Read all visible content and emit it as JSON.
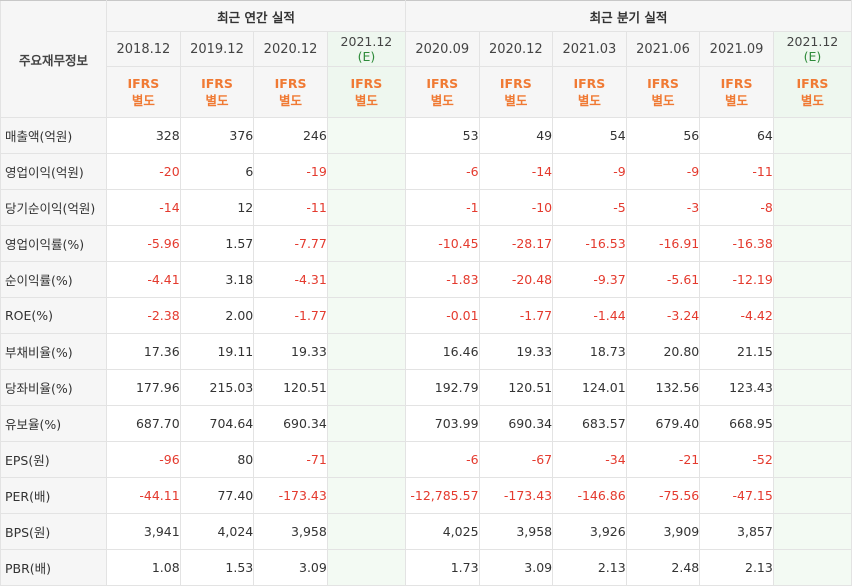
{
  "header": {
    "label": "주요재무정보",
    "annual_group": "최근 연간 실적",
    "quarter_group": "최근 분기 실적",
    "periods": [
      {
        "date": "2018.12",
        "est": "",
        "ifrs_top": "IFRS",
        "ifrs_bottom": "별도"
      },
      {
        "date": "2019.12",
        "est": "",
        "ifrs_top": "IFRS",
        "ifrs_bottom": "별도"
      },
      {
        "date": "2020.12",
        "est": "",
        "ifrs_top": "IFRS",
        "ifrs_bottom": "별도"
      },
      {
        "date": "2021.12",
        "est": "(E)",
        "ifrs_top": "IFRS",
        "ifrs_bottom": "별도"
      },
      {
        "date": "2020.09",
        "est": "",
        "ifrs_top": "IFRS",
        "ifrs_bottom": "별도"
      },
      {
        "date": "2020.12",
        "est": "",
        "ifrs_top": "IFRS",
        "ifrs_bottom": "별도"
      },
      {
        "date": "2021.03",
        "est": "",
        "ifrs_top": "IFRS",
        "ifrs_bottom": "별도"
      },
      {
        "date": "2021.06",
        "est": "",
        "ifrs_top": "IFRS",
        "ifrs_bottom": "별도"
      },
      {
        "date": "2021.09",
        "est": "",
        "ifrs_top": "IFRS",
        "ifrs_bottom": "별도"
      },
      {
        "date": "2021.12",
        "est": "(E)",
        "ifrs_top": "IFRS",
        "ifrs_bottom": "별도"
      }
    ]
  },
  "rows": [
    {
      "label": "매출액(억원)",
      "values": [
        "328",
        "376",
        "246",
        "",
        "53",
        "49",
        "54",
        "56",
        "64",
        ""
      ]
    },
    {
      "label": "영업이익(억원)",
      "values": [
        "-20",
        "6",
        "-19",
        "",
        "-6",
        "-14",
        "-9",
        "-9",
        "-11",
        ""
      ]
    },
    {
      "label": "당기순이익(억원)",
      "values": [
        "-14",
        "12",
        "-11",
        "",
        "-1",
        "-10",
        "-5",
        "-3",
        "-8",
        ""
      ]
    },
    {
      "label": "영업이익률(%)",
      "values": [
        "-5.96",
        "1.57",
        "-7.77",
        "",
        "-10.45",
        "-28.17",
        "-16.53",
        "-16.91",
        "-16.38",
        ""
      ]
    },
    {
      "label": "순이익률(%)",
      "values": [
        "-4.41",
        "3.18",
        "-4.31",
        "",
        "-1.83",
        "-20.48",
        "-9.37",
        "-5.61",
        "-12.19",
        ""
      ]
    },
    {
      "label": "ROE(%)",
      "values": [
        "-2.38",
        "2.00",
        "-1.77",
        "",
        "-0.01",
        "-1.77",
        "-1.44",
        "-3.24",
        "-4.42",
        ""
      ]
    },
    {
      "label": "부채비율(%)",
      "values": [
        "17.36",
        "19.11",
        "19.33",
        "",
        "16.46",
        "19.33",
        "18.73",
        "20.80",
        "21.15",
        ""
      ]
    },
    {
      "label": "당좌비율(%)",
      "values": [
        "177.96",
        "215.03",
        "120.51",
        "",
        "192.79",
        "120.51",
        "124.01",
        "132.56",
        "123.43",
        ""
      ]
    },
    {
      "label": "유보율(%)",
      "values": [
        "687.70",
        "704.64",
        "690.34",
        "",
        "703.99",
        "690.34",
        "683.57",
        "679.40",
        "668.95",
        ""
      ]
    },
    {
      "label": "EPS(원)",
      "values": [
        "-96",
        "80",
        "-71",
        "",
        "-6",
        "-67",
        "-34",
        "-21",
        "-52",
        ""
      ]
    },
    {
      "label": "PER(배)",
      "values": [
        "-44.11",
        "77.40",
        "-173.43",
        "",
        "-12,785.57",
        "-173.43",
        "-146.86",
        "-75.56",
        "-47.15",
        ""
      ]
    },
    {
      "label": "BPS(원)",
      "values": [
        "3,941",
        "4,024",
        "3,958",
        "",
        "4,025",
        "3,958",
        "3,926",
        "3,909",
        "3,857",
        ""
      ]
    },
    {
      "label": "PBR(배)",
      "values": [
        "1.08",
        "1.53",
        "3.09",
        "",
        "1.73",
        "3.09",
        "2.13",
        "2.48",
        "2.13",
        ""
      ]
    }
  ],
  "colors": {
    "negative": "#e43a2e",
    "ifrs": "#f07a34",
    "estimate_bg": "#eef7ef",
    "header_bg": "#f6f6f6"
  }
}
